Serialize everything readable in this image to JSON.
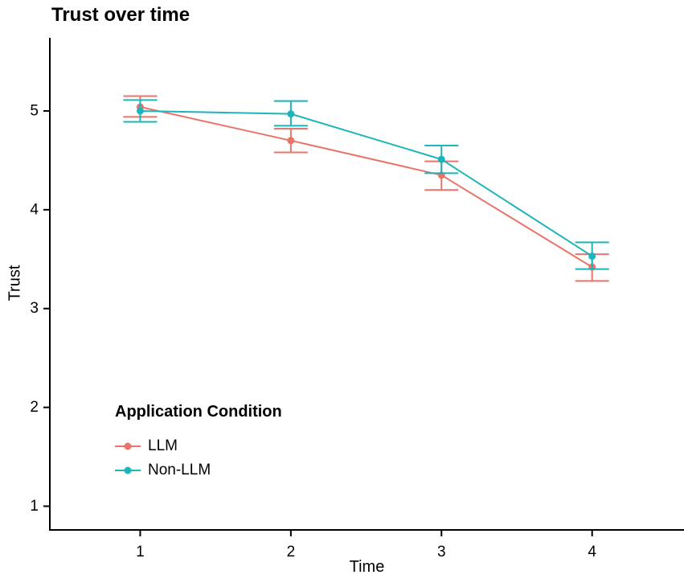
{
  "chart_data": {
    "type": "line",
    "title": "Trust over time",
    "xlabel": "Time",
    "ylabel": "Trust",
    "x": [
      1,
      2,
      3,
      4
    ],
    "x_tick_labels": [
      "1",
      "2",
      "3",
      "4"
    ],
    "y_ticks": [
      1,
      2,
      3,
      4,
      5
    ],
    "y_tick_labels": [
      "1",
      "2",
      "3",
      "4",
      "5"
    ],
    "xlim": [
      0.4,
      4.61
    ],
    "ylim": [
      0.76,
      5.74
    ],
    "grid": false,
    "error_bars": true,
    "legend": {
      "title": "Application Condition",
      "position": "inside-bottom-left"
    },
    "axis_color": "#000000",
    "series": [
      {
        "name": "LLM",
        "color": "#E8746A",
        "values": [
          5.04,
          4.7,
          4.35,
          3.42
        ],
        "ci_low": [
          4.94,
          4.58,
          4.2,
          3.28
        ],
        "ci_high": [
          5.15,
          4.82,
          4.49,
          3.55
        ]
      },
      {
        "name": "Non-LLM",
        "color": "#1CB5BA",
        "values": [
          5.0,
          4.97,
          4.51,
          3.53
        ],
        "ci_low": [
          4.89,
          4.85,
          4.37,
          3.4
        ],
        "ci_high": [
          5.11,
          5.1,
          4.65,
          3.67
        ]
      }
    ]
  }
}
